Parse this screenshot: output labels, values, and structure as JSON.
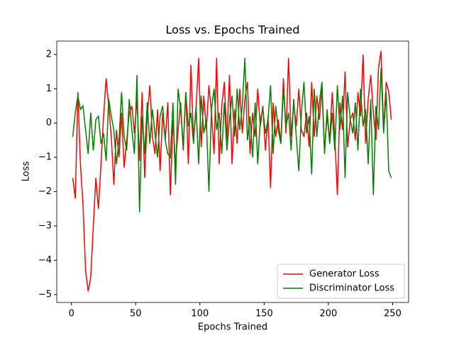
{
  "chart_data": {
    "type": "line",
    "title": "Loss vs. Epochs Trained",
    "x_label": "Epochs Trained",
    "y_label": "Loss",
    "x": [
      1,
      3,
      5,
      7,
      9,
      11,
      13,
      15,
      17,
      19,
      21,
      23,
      25,
      27,
      29,
      31,
      33,
      35,
      37,
      39,
      41,
      43,
      45,
      47,
      49,
      51,
      53,
      55,
      57,
      59,
      61,
      63,
      65,
      67,
      69,
      71,
      73,
      75,
      77,
      79,
      81,
      83,
      85,
      87,
      89,
      91,
      93,
      95,
      97,
      99,
      101,
      103,
      105,
      107,
      109,
      111,
      113,
      115,
      117,
      119,
      121,
      123,
      125,
      127,
      129,
      131,
      133,
      135,
      137,
      139,
      141,
      143,
      145,
      147,
      149,
      151,
      153,
      155,
      157,
      159,
      161,
      163,
      165,
      167,
      169,
      171,
      173,
      175,
      177,
      179,
      181,
      183,
      185,
      187,
      189,
      191,
      193,
      195,
      197,
      199,
      201,
      203,
      205,
      207,
      209,
      211,
      213,
      215,
      217,
      219,
      221,
      223,
      225,
      227,
      229,
      231,
      233,
      235,
      237,
      239,
      241,
      243,
      245,
      247,
      249
    ],
    "series": [
      {
        "name": "Generator Loss",
        "color": "#ff0000",
        "values": [
          -1.6,
          -2.2,
          0.9,
          -1.2,
          -2.4,
          -4.3,
          -4.9,
          -4.5,
          -3.0,
          -1.6,
          -2.5,
          -1.2,
          0.2,
          1.3,
          0.5,
          -0.4,
          -1.8,
          -0.2,
          -1.0,
          0.3,
          -1.3,
          -0.5,
          0.3,
          0.5,
          -0.3,
          0.7,
          -1.1,
          0.9,
          -1.6,
          0.2,
          1.1,
          -0.4,
          -0.9,
          0.4,
          -1.4,
          0.3,
          -0.5,
          0.6,
          -2.1,
          0.1,
          -1.2,
          -0.2,
          0.6,
          -0.8,
          0.9,
          -1.2,
          1.7,
          -0.5,
          0.4,
          1.9,
          -0.7,
          0.8,
          -0.2,
          1.1,
          0.3,
          -0.9,
          1.9,
          -1.2,
          0.5,
          1.2,
          -0.5,
          1.4,
          -1.2,
          0.4,
          -0.6,
          1.0,
          -0.3,
          0.7,
          1.2,
          -0.9,
          0.3,
          -0.4,
          1.0,
          -0.1,
          0.5,
          -0.8,
          0.2,
          -1.9,
          0.6,
          -0.4,
          0.1,
          -0.6,
          1.3,
          -0.3,
          1.9,
          -0.4,
          0.6,
          -0.1,
          1.0,
          -0.2,
          -0.4,
          0.3,
          -0.7,
          1.2,
          -0.4,
          0.8,
          0.1,
          1.0,
          -0.8,
          0.2,
          -0.5,
          0.9,
          -0.4,
          -2.1,
          0.6,
          -0.2,
          1.5,
          -0.7,
          0.1,
          0.3,
          -0.5,
          0.9,
          0.2,
          2.0,
          -0.6,
          0.7,
          1.4,
          0.3,
          -0.5,
          1.6,
          2.1,
          -0.2,
          1.2,
          0.9,
          0.1
        ]
      },
      {
        "name": "Discriminator Loss",
        "color": "#008000",
        "values": [
          -0.4,
          0.3,
          0.8,
          0.4,
          0.5,
          -0.2,
          -0.9,
          0.3,
          -0.8,
          0.1,
          0.2,
          -0.6,
          -0.3,
          -1.1,
          0.7,
          0.2,
          -0.2,
          -1.2,
          -0.5,
          0.9,
          -0.4,
          -0.8,
          0.7,
          -0.2,
          -0.9,
          1.4,
          -2.6,
          0.2,
          -0.9,
          0.6,
          -0.6,
          0.4,
          -0.3,
          -1.0,
          0.2,
          0.5,
          -0.5,
          -0.9,
          -1.0,
          0.6,
          -1.8,
          1.0,
          0.4,
          -0.7,
          0.9,
          -0.1,
          0.3,
          -0.6,
          0.5,
          -1.2,
          0.8,
          -0.3,
          0.1,
          -2.0,
          0.4,
          1.0,
          -0.2,
          0.3,
          -0.9,
          0.6,
          -0.8,
          0.1,
          0.8,
          -0.4,
          1.0,
          -0.2,
          0.5,
          1.9,
          -0.5,
          0.2,
          -1.0,
          0.6,
          -1.2,
          0.1,
          0.4,
          -0.3,
          0.1,
          1.1,
          -0.9,
          0.5,
          -0.2,
          -0.6,
          1.0,
          -0.1,
          0.3,
          -0.8,
          0.7,
          -0.4,
          -1.4,
          0.3,
          1.2,
          -0.3,
          0.2,
          -1.5,
          1.0,
          -0.4,
          0.6,
          1.2,
          -0.9,
          0.4,
          -0.6,
          0.3,
          -0.8,
          1.1,
          -0.2,
          0.8,
          -1.6,
          0.9,
          0.1,
          -0.3,
          0.6,
          -0.8,
          1.0,
          -0.1,
          0.4,
          -1.2,
          0.7,
          -2.1,
          0.5,
          -0.2,
          1.6,
          -0.3,
          0.9,
          -1.4,
          -1.6
        ]
      }
    ],
    "xlim": [
      -11.45,
      262.45
    ],
    "ylim": [
      -5.23,
      2.39
    ],
    "xticks": [
      0,
      50,
      100,
      150,
      200,
      250
    ],
    "yticks": [
      {
        "value": -5,
        "label": "−5"
      },
      {
        "value": -4,
        "label": "−4"
      },
      {
        "value": -3,
        "label": "−3"
      },
      {
        "value": -2,
        "label": "−2"
      },
      {
        "value": -1,
        "label": "−1"
      },
      0,
      1,
      2
    ],
    "legend": "lower right",
    "grid": false
  }
}
